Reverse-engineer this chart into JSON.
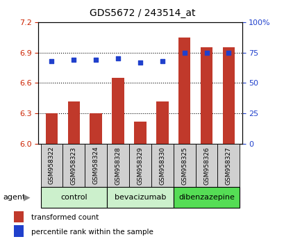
{
  "title": "GDS5672 / 243514_at",
  "samples": [
    "GSM958322",
    "GSM958323",
    "GSM958324",
    "GSM958328",
    "GSM958329",
    "GSM958330",
    "GSM958325",
    "GSM958326",
    "GSM958327"
  ],
  "bar_values": [
    6.3,
    6.42,
    6.3,
    6.65,
    6.22,
    6.42,
    7.05,
    6.95,
    6.95
  ],
  "percentile_values": [
    68,
    69,
    69,
    70,
    67,
    68,
    75,
    75,
    75
  ],
  "bar_color": "#c0392b",
  "dot_color": "#2040cc",
  "ylim_left": [
    6.0,
    7.2
  ],
  "ylim_right": [
    0,
    100
  ],
  "yticks_left": [
    6.0,
    6.3,
    6.6,
    6.9,
    7.2
  ],
  "yticks_right": [
    0,
    25,
    50,
    75,
    100
  ],
  "groups": [
    {
      "label": "control",
      "indices": [
        0,
        1,
        2
      ],
      "color": "#ccf0cc"
    },
    {
      "label": "bevacizumab",
      "indices": [
        3,
        4,
        5
      ],
      "color": "#ccf0cc"
    },
    {
      "label": "dibenzazepine",
      "indices": [
        6,
        7,
        8
      ],
      "color": "#55dd55"
    }
  ],
  "legend_bar_label": "transformed count",
  "legend_dot_label": "percentile rank within the sample",
  "agent_label": "agent",
  "background_color": "#ffffff",
  "plot_bg_color": "#ffffff",
  "tick_label_color_left": "#cc2200",
  "tick_label_color_right": "#2040cc",
  "grid_color": "#000000",
  "bar_width": 0.55
}
